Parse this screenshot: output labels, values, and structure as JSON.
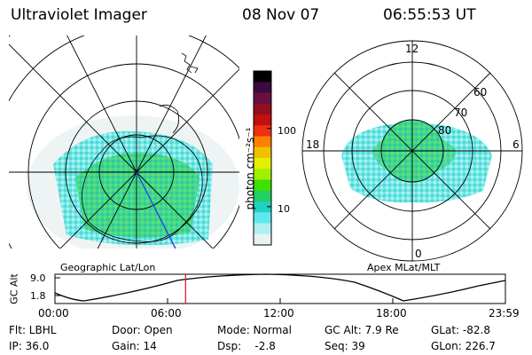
{
  "header": {
    "instrument": "Ultraviolet Imager",
    "date": "08 Nov 07",
    "time": "06:55:53 UT"
  },
  "geo_panel": {
    "label": "Geographic Lat/Lon"
  },
  "colorbar": {
    "unit_label": "photon cm⁻²s⁻¹",
    "ticks": [
      "100",
      "10"
    ],
    "colors": [
      "#000000",
      "#3a0a40",
      "#6a1040",
      "#901020",
      "#c01010",
      "#f03010",
      "#ff8000",
      "#f0c000",
      "#e0f000",
      "#a0f000",
      "#40e000",
      "#20d060",
      "#20d0c0",
      "#60e8f0",
      "#b0f0f0",
      "#e8f4f4"
    ]
  },
  "polar_panel": {
    "label": "Apex MLat/MLT",
    "mlt_labels": {
      "top": "12",
      "left": "18",
      "right": "6",
      "bottom": "0"
    },
    "lat_labels": [
      "60",
      "70",
      "80"
    ]
  },
  "orbit_plot": {
    "y_axis_label": "GC Alt",
    "y_ticks": [
      "9.0",
      "1.8"
    ],
    "x_ticks": [
      "00:00",
      "06:00",
      "12:00",
      "18:00",
      "23:59"
    ],
    "current_time_fraction": 0.29
  },
  "status": {
    "flt": "Flt: LBHL",
    "ip": "IP: 36.0",
    "door": "Door: Open",
    "gain": "Gain: 14",
    "mode": "Mode: Normal",
    "dsp": "Dsp:    -2.8",
    "gc_alt": "GC Alt: 7.9 Re",
    "seq": "Seq: 39",
    "glat": "GLat: -82.8",
    "glon": "GLon: 226.7"
  }
}
